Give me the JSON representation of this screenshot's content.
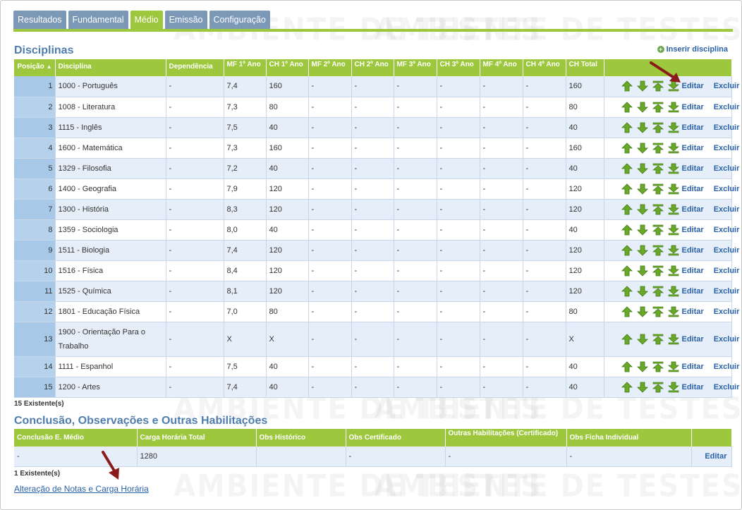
{
  "tabs": [
    {
      "label": "Resultados",
      "active": false
    },
    {
      "label": "Fundamental",
      "active": false
    },
    {
      "label": "Médio",
      "active": true
    },
    {
      "label": "Emissão",
      "active": false
    },
    {
      "label": "Configuração",
      "active": false
    }
  ],
  "watermark": "AMBIENTE DE TESTES",
  "disciplinas": {
    "title": "Disciplinas",
    "insert_label": "Inserir disciplina",
    "headers": {
      "posicao": "Posição",
      "disciplina": "Disciplina",
      "dependencia": "Dependência",
      "mf1": "MF 1º Ano",
      "ch1": "CH 1º Ano",
      "mf2": "MF 2º Ano",
      "ch2": "CH 2º Ano",
      "mf3": "MF 3º Ano",
      "ch3": "CH 3º Ano",
      "mf4": "MF 4º Ano",
      "ch4": "CH 4º Ano",
      "chtotal": "CH Total"
    },
    "edit_label": "Editar",
    "delete_label": "Excluir",
    "rows": [
      {
        "pos": "1",
        "disciplina": "1000 - Português",
        "dep": "-",
        "mf1": "7,4",
        "ch1": "160",
        "mf2": "-",
        "ch2": "-",
        "mf3": "-",
        "ch3": "-",
        "mf4": "-",
        "ch4": "-",
        "total": "160"
      },
      {
        "pos": "2",
        "disciplina": "1008 - Literatura",
        "dep": "-",
        "mf1": "7,3",
        "ch1": "80",
        "mf2": "-",
        "ch2": "-",
        "mf3": "-",
        "ch3": "-",
        "mf4": "-",
        "ch4": "-",
        "total": "80"
      },
      {
        "pos": "3",
        "disciplina": "1115 - Inglês",
        "dep": "-",
        "mf1": "7,5",
        "ch1": "40",
        "mf2": "-",
        "ch2": "-",
        "mf3": "-",
        "ch3": "-",
        "mf4": "-",
        "ch4": "-",
        "total": "40"
      },
      {
        "pos": "4",
        "disciplina": "1600 - Matemática",
        "dep": "-",
        "mf1": "7,3",
        "ch1": "160",
        "mf2": "-",
        "ch2": "-",
        "mf3": "-",
        "ch3": "-",
        "mf4": "-",
        "ch4": "-",
        "total": "160"
      },
      {
        "pos": "5",
        "disciplina": "1329 - Filosofia",
        "dep": "-",
        "mf1": "7,2",
        "ch1": "40",
        "mf2": "-",
        "ch2": "-",
        "mf3": "-",
        "ch3": "-",
        "mf4": "-",
        "ch4": "-",
        "total": "40"
      },
      {
        "pos": "6",
        "disciplina": "1400 - Geografia",
        "dep": "-",
        "mf1": "7,9",
        "ch1": "120",
        "mf2": "-",
        "ch2": "-",
        "mf3": "-",
        "ch3": "-",
        "mf4": "-",
        "ch4": "-",
        "total": "120"
      },
      {
        "pos": "7",
        "disciplina": "1300 - História",
        "dep": "-",
        "mf1": "8,3",
        "ch1": "120",
        "mf2": "-",
        "ch2": "-",
        "mf3": "-",
        "ch3": "-",
        "mf4": "-",
        "ch4": "-",
        "total": "120"
      },
      {
        "pos": "8",
        "disciplina": "1359 - Sociologia",
        "dep": "-",
        "mf1": "8,0",
        "ch1": "40",
        "mf2": "-",
        "ch2": "-",
        "mf3": "-",
        "ch3": "-",
        "mf4": "-",
        "ch4": "-",
        "total": "40"
      },
      {
        "pos": "9",
        "disciplina": "1511 - Biologia",
        "dep": "-",
        "mf1": "7,4",
        "ch1": "120",
        "mf2": "-",
        "ch2": "-",
        "mf3": "-",
        "ch3": "-",
        "mf4": "-",
        "ch4": "-",
        "total": "120"
      },
      {
        "pos": "10",
        "disciplina": "1516 - Física",
        "dep": "-",
        "mf1": "8,4",
        "ch1": "120",
        "mf2": "-",
        "ch2": "-",
        "mf3": "-",
        "ch3": "-",
        "mf4": "-",
        "ch4": "-",
        "total": "120"
      },
      {
        "pos": "11",
        "disciplina": "1525 - Química",
        "dep": "-",
        "mf1": "8,1",
        "ch1": "120",
        "mf2": "-",
        "ch2": "-",
        "mf3": "-",
        "ch3": "-",
        "mf4": "-",
        "ch4": "-",
        "total": "120"
      },
      {
        "pos": "12",
        "disciplina": "1801 - Educação Física",
        "dep": "-",
        "mf1": "7,0",
        "ch1": "80",
        "mf2": "-",
        "ch2": "-",
        "mf3": "-",
        "ch3": "-",
        "mf4": "-",
        "ch4": "-",
        "total": "80"
      },
      {
        "pos": "13",
        "disciplina": "1900 - Orientação Para o Trabalho",
        "dep": "-",
        "mf1": "X",
        "ch1": "X",
        "mf2": "-",
        "ch2": "-",
        "mf3": "-",
        "ch3": "-",
        "mf4": "-",
        "ch4": "-",
        "total": "X"
      },
      {
        "pos": "14",
        "disciplina": "1111 - Espanhol",
        "dep": "-",
        "mf1": "7,5",
        "ch1": "40",
        "mf2": "-",
        "ch2": "-",
        "mf3": "-",
        "ch3": "-",
        "mf4": "-",
        "ch4": "-",
        "total": "40"
      },
      {
        "pos": "15",
        "disciplina": "1200 - Artes",
        "dep": "-",
        "mf1": "7,4",
        "ch1": "40",
        "mf2": "-",
        "ch2": "-",
        "mf3": "-",
        "ch3": "-",
        "mf4": "-",
        "ch4": "-",
        "total": "40"
      }
    ],
    "count_label": "15 Existente(s)"
  },
  "conclusao": {
    "title": "Conclusão, Observações e Outras Habilitações",
    "headers": {
      "conclusao": "Conclusão E. Médio",
      "carga": "Carga Horária Total",
      "obs_hist": "Obs Histórico",
      "obs_cert": "Obs Certificado",
      "outras": "Outras Habilitações (Certificado)",
      "obs_ficha": "Obs Ficha Individual"
    },
    "row": {
      "conclusao": "-",
      "carga": "1280",
      "obs_hist": "",
      "obs_cert": "-",
      "outras": "-",
      "obs_ficha": "-"
    },
    "edit_label": "Editar",
    "count_label": "1 Existente(s)"
  },
  "bottom_link": "Alteração de Notas e Carga Horária",
  "colors": {
    "accent_green": "#9dc73c",
    "tab_blue": "#7c98b7",
    "link_blue": "#2a62a8",
    "title_blue": "#4f7eae",
    "annotation_red": "#8b1a1a"
  }
}
